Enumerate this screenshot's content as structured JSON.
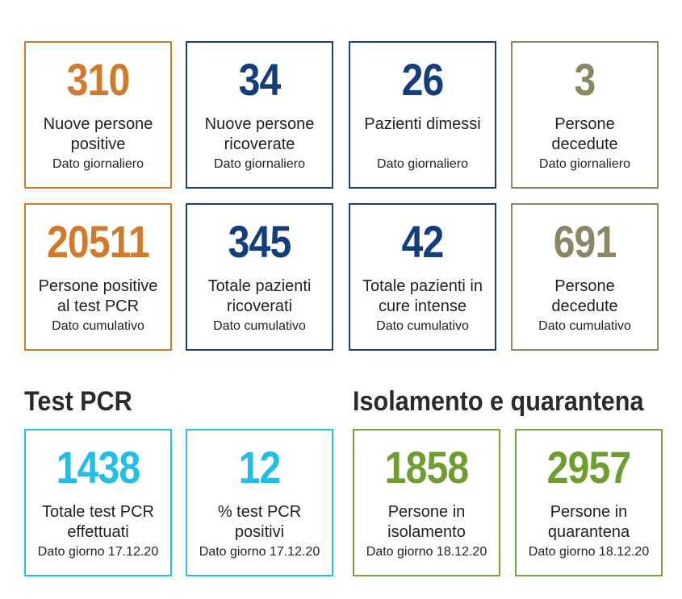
{
  "daily": [
    {
      "value": "310",
      "line1": "Nuove persone",
      "line2": "positive",
      "sub": "Dato giornaliero"
    },
    {
      "value": "34",
      "line1": "Nuove persone",
      "line2": "ricoverate",
      "sub": "Dato giornaliero"
    },
    {
      "value": "26",
      "line1": "Pazienti dimessi",
      "line2": "",
      "sub": "Dato giornaliero"
    },
    {
      "value": "3",
      "line1": "Persone",
      "line2": "decedute",
      "sub": "Dato giornaliero"
    }
  ],
  "cumulative": [
    {
      "value": "20511",
      "line1": "Persone positive",
      "line2": "al test PCR",
      "sub": "Dato cumulativo"
    },
    {
      "value": "345",
      "line1": "Totale pazienti",
      "line2": "ricoverati",
      "sub": "Dato cumulativo"
    },
    {
      "value": "42",
      "line1": "Totale pazienti in",
      "line2": "cure intense",
      "sub": "Dato cumulativo"
    },
    {
      "value": "691",
      "line1": "Persone",
      "line2": "decedute",
      "sub": "Dato cumulativo"
    }
  ],
  "test_pcr": {
    "title": "Test PCR",
    "cards": [
      {
        "value": "1438",
        "line1": "Totale test PCR",
        "line2": "effettuati",
        "sub": "Dato giorno 17.12.20"
      },
      {
        "value": "12",
        "line1": "% test PCR",
        "line2": "positivi",
        "sub": "Dato giorno 17.12.20"
      }
    ]
  },
  "isolation": {
    "title": "Isolamento e quarantena",
    "cards": [
      {
        "value": "1858",
        "line1": "Persone in",
        "line2": "isolamento",
        "sub": "Dato giorno 18.12.20"
      },
      {
        "value": "2957",
        "line1": "Persone in",
        "line2": "quarantena",
        "sub": "Dato giorno 18.12.20"
      }
    ]
  },
  "colors": {
    "orange": "#d27a2c",
    "navy": "#133e7e",
    "olive": "#8c8763",
    "cyan": "#1fbfe8",
    "green": "#6f9d2f"
  }
}
